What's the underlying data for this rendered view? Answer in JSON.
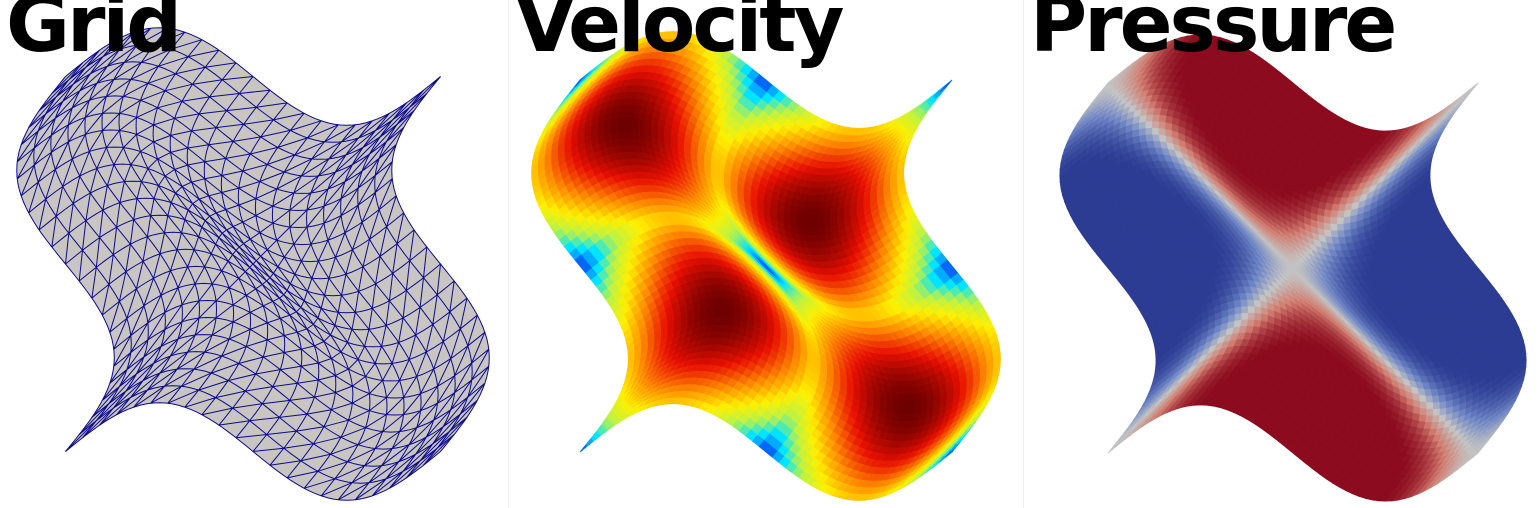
{
  "panels": [
    {
      "id": "grid",
      "title": "Grid",
      "mesh_color": "#0b0b8a",
      "fill_color": "#c9c5c2"
    },
    {
      "id": "velocity",
      "title": "Velocity",
      "colormap": [
        "#00007f",
        "#0070ff",
        "#00e5ff",
        "#b8f24a",
        "#fff000",
        "#ff8c00",
        "#e81000",
        "#6e0000"
      ]
    },
    {
      "id": "pressure",
      "title": "Pressure",
      "colormap": [
        "#2c3c93",
        "#6e86c6",
        "#c3c3c3",
        "#d27e71",
        "#8c0b1e"
      ]
    }
  ],
  "colors": {
    "background": "#ffffff",
    "title": "#000000"
  }
}
